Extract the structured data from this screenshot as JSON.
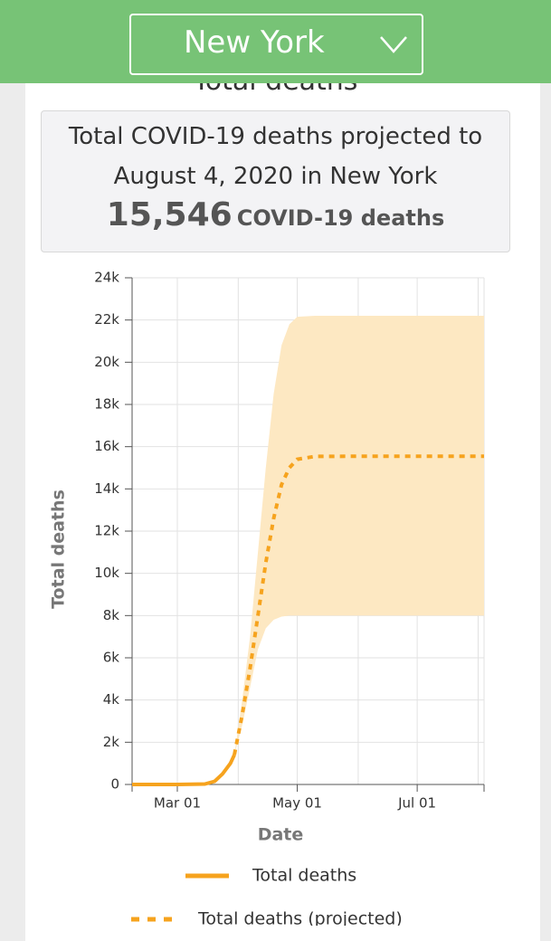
{
  "header": {
    "location": "New York"
  },
  "section_title": "Total deaths",
  "summary": {
    "text": "Total COVID-19 deaths projected to August 4, 2020 in New York",
    "number": "15,546",
    "unit": "COVID-19 deaths"
  },
  "chart_data": {
    "type": "line",
    "y_label": "Total deaths",
    "x_label": "Date",
    "grid": true,
    "xlim": [
      "Feb 07",
      "Aug 04"
    ],
    "xticks": [
      "Mar 01",
      "May 01",
      "Jul 01"
    ],
    "xminor": [
      "Apr 01",
      "Jun 01",
      "Aug 01"
    ],
    "ylim": [
      0,
      24000
    ],
    "yticks": [
      0,
      {
        "value": 2000,
        "label": "2k"
      },
      {
        "value": 4000,
        "label": "4k"
      },
      {
        "value": 6000,
        "label": "6k"
      },
      {
        "value": 8000,
        "label": "8k"
      },
      {
        "value": 10000,
        "label": "10k"
      },
      {
        "value": 12000,
        "label": "12k"
      },
      {
        "value": 14000,
        "label": "14k"
      },
      {
        "value": 16000,
        "label": "16k"
      },
      {
        "value": 18000,
        "label": "18k"
      },
      {
        "value": 20000,
        "label": "20k"
      },
      {
        "value": 22000,
        "label": "22k"
      },
      {
        "value": 24000,
        "label": "24k"
      }
    ],
    "series": [
      {
        "name": "Total deaths",
        "color": "#f6a31e",
        "style": "solid",
        "x": [
          "Feb 07",
          "Mar 01",
          "Mar 15",
          "Mar 20",
          "Mar 24",
          "Mar 28",
          "Mar 30"
        ],
        "values": [
          0,
          0,
          20,
          150,
          500,
          1000,
          1400
        ]
      },
      {
        "name": "Total deaths (projected)",
        "color": "#f6a31e",
        "style": "dashed",
        "band_color": "#fde8c2",
        "x": [
          "Mar 30",
          "Apr 03",
          "Apr 07",
          "Apr 11",
          "Apr 15",
          "Apr 19",
          "Apr 23",
          "Apr 27",
          "May 01",
          "May 10",
          "Jun 01",
          "Aug 04"
        ],
        "values": [
          1400,
          3300,
          5500,
          8000,
          10500,
          12600,
          14200,
          15000,
          15400,
          15540,
          15546,
          15546
        ],
        "band_lower": [
          1400,
          2800,
          4600,
          6400,
          7400,
          7800,
          7950,
          8000,
          8000,
          8000,
          8000,
          8000
        ],
        "band_upper": [
          1400,
          4000,
          7000,
          11000,
          15000,
          18500,
          20800,
          21800,
          22150,
          22200,
          22200,
          22200
        ]
      }
    ]
  }
}
